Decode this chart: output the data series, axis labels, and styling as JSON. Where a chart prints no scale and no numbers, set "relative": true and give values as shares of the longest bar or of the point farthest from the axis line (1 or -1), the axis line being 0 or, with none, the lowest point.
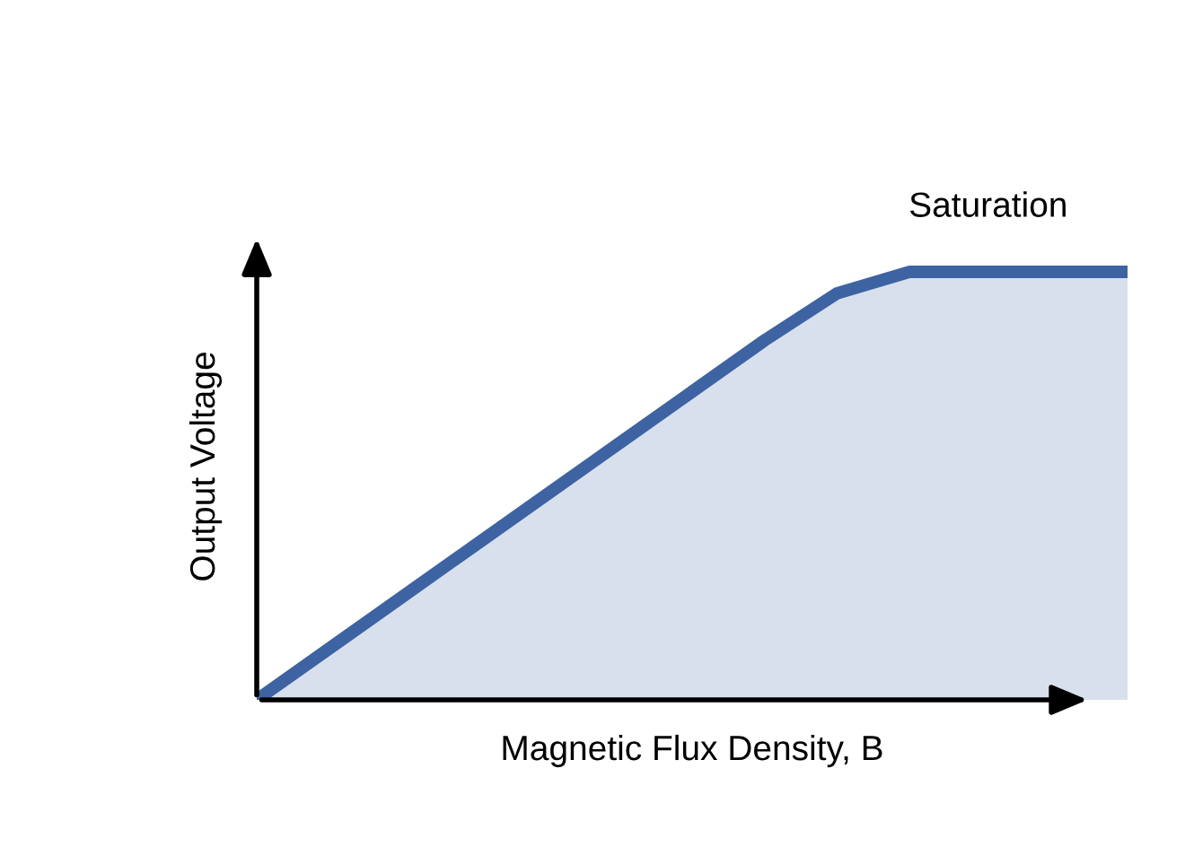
{
  "chart_data": {
    "type": "area",
    "relative": true,
    "xlabel": "Magnetic Flux Density, B",
    "ylabel": "Output Voltage",
    "annotations": [
      "Saturation"
    ],
    "categories": [
      null,
      null,
      null,
      null,
      null,
      null,
      null,
      null,
      null,
      null,
      null,
      null,
      null
    ],
    "series": [
      {
        "color": "#3d63a3",
        "values": [
          0,
          0.12,
          0.24,
          0.36,
          0.48,
          0.6,
          0.72,
          0.84,
          0.95,
          1,
          1,
          1,
          1
        ]
      }
    ]
  }
}
